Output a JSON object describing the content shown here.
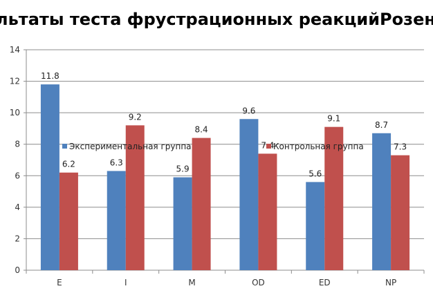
{
  "chart_data": {
    "type": "bar",
    "title": "льтаты теста фрустрационных реакцийРозен",
    "categories": [
      "E",
      "I",
      "M",
      "OD",
      "ED",
      "NP"
    ],
    "series": [
      {
        "name": "Экспериментальная группа",
        "color": "#4F81BD",
        "values": [
          11.8,
          6.3,
          5.9,
          9.6,
          5.6,
          8.7
        ]
      },
      {
        "name": "Контрольная группа",
        "color": "#C0504D",
        "values": [
          6.2,
          9.2,
          8.4,
          7.4,
          9.1,
          7.3
        ]
      }
    ],
    "ylim": [
      0,
      14
    ],
    "yticks": [
      "0",
      "2",
      "4",
      "6",
      "8",
      "10",
      "12",
      "14"
    ],
    "grid": true,
    "legend": "inside-middle",
    "data_labels": true
  }
}
